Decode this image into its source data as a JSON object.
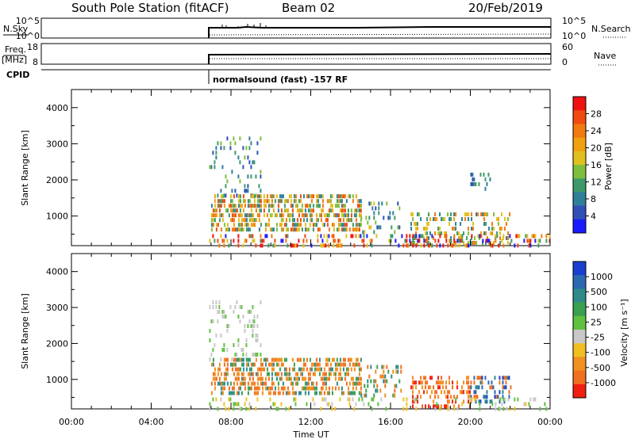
{
  "header": {
    "title": "South Pole Station (fitACF)",
    "beam": "Beam 02",
    "date": "20/Feb/2019"
  },
  "summary_panels": {
    "nsky_label": "N.Sky",
    "nsky_ticks": [
      "10^5",
      "10^0"
    ],
    "nsearch_label": "N.Search",
    "nsearch_ticks": [
      "10^5",
      "10^0"
    ],
    "freq_label": "Freq.",
    "freq_unit": "[MHz]",
    "freq_ticks": [
      "18",
      "8"
    ],
    "nave_label": "Nave",
    "nave_ticks": [
      "60",
      "0"
    ],
    "cpid_label": "CPID",
    "cpid_text": "normalsound (fast) -157 RF"
  },
  "chart_data": [
    {
      "type": "heatmap",
      "parameter": "power",
      "ylabel": "Slant Range [km]",
      "xlabel": "",
      "x_ticks": [
        "00:00",
        "04:00",
        "08:00",
        "12:00",
        "16:00",
        "20:00",
        "00:00"
      ],
      "xlim_hours": [
        0,
        24
      ],
      "ylim": [
        180,
        4500
      ],
      "y_ticks": [
        "1000",
        "2000",
        "3000",
        "4000"
      ],
      "colorbar": {
        "label": "Power [dB]",
        "ticks": [
          "4",
          "8",
          "12",
          "16",
          "20",
          "24",
          "28"
        ],
        "colors": [
          "#1a1aff",
          "#3050b8",
          "#2f7f9a",
          "#3c9a6a",
          "#7fbe3c",
          "#e0c020",
          "#f0a010",
          "#f07a10",
          "#f04a10",
          "#f01010"
        ]
      },
      "scatter_regions": [
        {
          "t0": 6.9,
          "t1": 9.5,
          "r0": 1600,
          "r1": 3200,
          "density": 0.18,
          "palette": [
            1,
            2,
            3,
            4
          ]
        },
        {
          "t0": 7.0,
          "t1": 14.5,
          "r0": 600,
          "r1": 1600,
          "density": 0.55,
          "palette": [
            2,
            3,
            4,
            5,
            6,
            7,
            8
          ]
        },
        {
          "t0": 14.5,
          "t1": 16.5,
          "r0": 600,
          "r1": 1400,
          "density": 0.25,
          "palette": [
            1,
            2,
            3,
            4,
            5
          ]
        },
        {
          "t0": 17.0,
          "t1": 22.0,
          "r0": 300,
          "r1": 1100,
          "density": 0.35,
          "palette": [
            2,
            3,
            4,
            5,
            6,
            7
          ]
        },
        {
          "t0": 20.0,
          "t1": 21.0,
          "r0": 1800,
          "r1": 2200,
          "density": 0.3,
          "palette": [
            1,
            2,
            3
          ]
        },
        {
          "t0": 6.9,
          "t1": 24.0,
          "r0": 180,
          "r1": 500,
          "density": 0.3,
          "palette": [
            0,
            3,
            5,
            7,
            8,
            9
          ]
        }
      ]
    },
    {
      "type": "heatmap",
      "parameter": "velocity",
      "ylabel": "Slant Range [km]",
      "xlabel": "Time UT",
      "x_ticks": [
        "00:00",
        "04:00",
        "08:00",
        "12:00",
        "16:00",
        "20:00",
        "00:00"
      ],
      "xlim_hours": [
        0,
        24
      ],
      "ylim": [
        180,
        4500
      ],
      "y_ticks": [
        "1000",
        "2000",
        "3000",
        "4000"
      ],
      "colorbar": {
        "label": "Velocity [m s⁻¹]",
        "ticks": [
          "1000",
          "500",
          "100",
          "25",
          "-25",
          "-100",
          "-500",
          "-1000"
        ],
        "colors": [
          "#1a3fd0",
          "#2a68b0",
          "#2f8a8a",
          "#3aa050",
          "#60c040",
          "#c8c8c8",
          "#f0c020",
          "#f09020",
          "#f07020",
          "#f02010"
        ]
      },
      "scatter_regions": [
        {
          "t0": 6.9,
          "t1": 9.5,
          "r0": 1600,
          "r1": 3200,
          "density": 0.18,
          "palette": [
            5,
            5,
            4
          ]
        },
        {
          "t0": 7.0,
          "t1": 14.5,
          "r0": 600,
          "r1": 1600,
          "density": 0.55,
          "palette": [
            7,
            8,
            8,
            7,
            2,
            3
          ]
        },
        {
          "t0": 14.5,
          "t1": 16.5,
          "r0": 600,
          "r1": 1400,
          "density": 0.25,
          "palette": [
            2,
            3,
            7,
            8
          ]
        },
        {
          "t0": 17.0,
          "t1": 20.0,
          "r0": 300,
          "r1": 1100,
          "density": 0.35,
          "palette": [
            7,
            8,
            9
          ]
        },
        {
          "t0": 20.0,
          "t1": 22.0,
          "r0": 400,
          "r1": 1100,
          "density": 0.45,
          "palette": [
            0,
            1,
            2,
            8
          ]
        },
        {
          "t0": 6.9,
          "t1": 24.0,
          "r0": 180,
          "r1": 500,
          "density": 0.15,
          "palette": [
            4,
            5,
            6
          ]
        }
      ]
    }
  ]
}
